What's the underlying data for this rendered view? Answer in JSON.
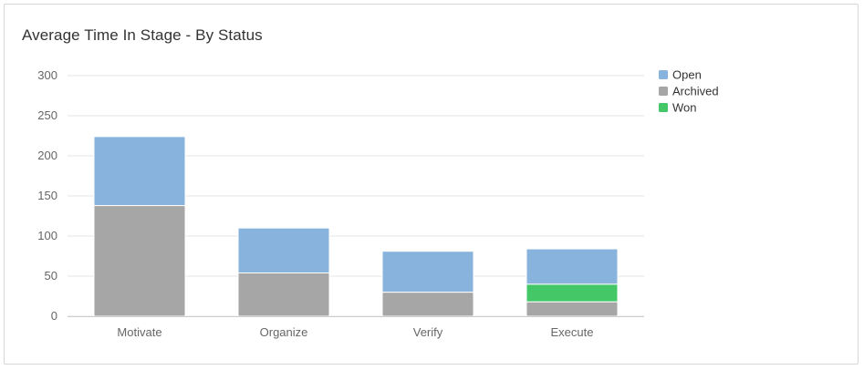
{
  "chart_data": {
    "type": "bar",
    "stacked": true,
    "title": "Average Time In Stage - By Status",
    "xlabel": "",
    "ylabel": "",
    "categories": [
      "Motivate",
      "Organize",
      "Verify",
      "Execute"
    ],
    "ylim": [
      0,
      300
    ],
    "yticks": [
      0,
      50,
      100,
      150,
      200,
      250,
      300
    ],
    "grid": true,
    "legend_position": "right",
    "series": [
      {
        "name": "Archived",
        "color": "#a6a6a6",
        "values": [
          138,
          54,
          30,
          18
        ]
      },
      {
        "name": "Won",
        "color": "#44c767",
        "values": [
          0,
          0,
          0,
          22
        ]
      },
      {
        "name": "Open",
        "color": "#88b3dc",
        "values": [
          86,
          56,
          51,
          44
        ]
      }
    ],
    "legend_order": [
      "Open",
      "Archived",
      "Won"
    ]
  }
}
